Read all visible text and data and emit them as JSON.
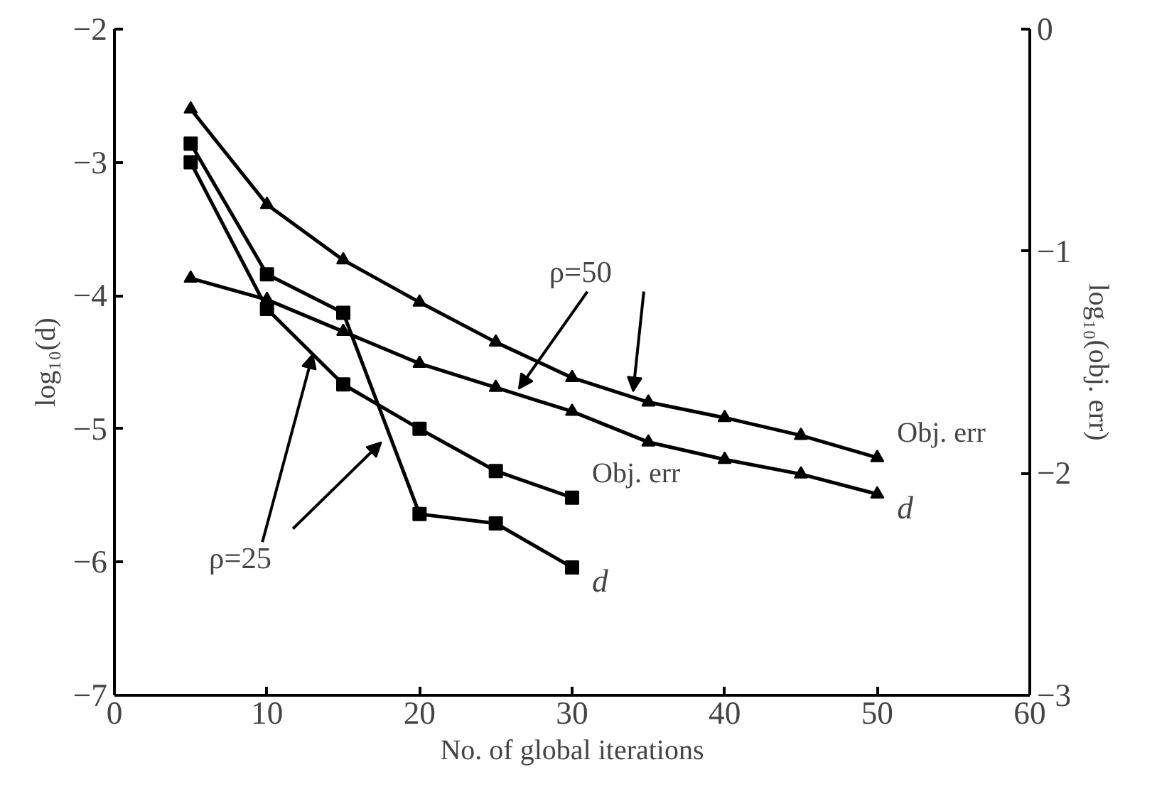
{
  "chart_data": {
    "type": "line",
    "xlabel": "No. of global iterations",
    "ylabel": "log₁₀(d)",
    "y2label": "log₁₀(obj. err)",
    "xlim": [
      0,
      60
    ],
    "xticks": [
      0,
      10,
      20,
      30,
      40,
      50,
      60
    ],
    "ylim": [
      -7,
      -2
    ],
    "yticks": [
      -7,
      -6,
      -5,
      -4,
      -3,
      -2
    ],
    "y2lim": [
      -3,
      0
    ],
    "y2ticks": [
      -3,
      -2,
      -1,
      0
    ],
    "grid": false,
    "line_style": "solid",
    "annotations": [
      {
        "text": "ρ=50",
        "x": 26.5,
        "y": -4.7
      },
      {
        "text": "ρ=25",
        "x": 13,
        "y": -4.44
      }
    ],
    "series": [
      {
        "name": "Obj. err",
        "color": "#000000",
        "marker": "triangle",
        "axis": "y2",
        "x": [
          5,
          10,
          15,
          20,
          25,
          30,
          35,
          40,
          45,
          50
        ],
        "values": [
          -0.36,
          -0.79,
          -1.04,
          -1.23,
          -1.41,
          -1.57,
          -1.68,
          -1.75,
          -1.83,
          -1.93
        ]
      },
      {
        "name": "d",
        "color": "#000000",
        "marker": "triangle",
        "x": [
          5,
          10,
          15,
          20,
          25,
          30,
          35,
          40,
          45,
          50
        ],
        "values": [
          -3.87,
          -4.03,
          -4.27,
          -4.51,
          -4.69,
          -4.87,
          -5.1,
          -5.23,
          -5.34,
          -5.49
        ]
      },
      {
        "name": "Obj. err",
        "color": "#000000",
        "marker": "square",
        "axis": "y2",
        "x": [
          5,
          10,
          15,
          20,
          25,
          30
        ],
        "values": [
          -0.6,
          -1.26,
          -1.6,
          -1.8,
          -1.99,
          -2.11
        ]
      },
      {
        "name": "d",
        "color": "#000000",
        "marker": "square",
        "x": [
          5,
          10,
          15,
          20,
          25,
          30
        ],
        "values": [
          -2.86,
          -3.84,
          -4.13,
          -5.64,
          -5.71,
          -6.04
        ]
      }
    ]
  }
}
